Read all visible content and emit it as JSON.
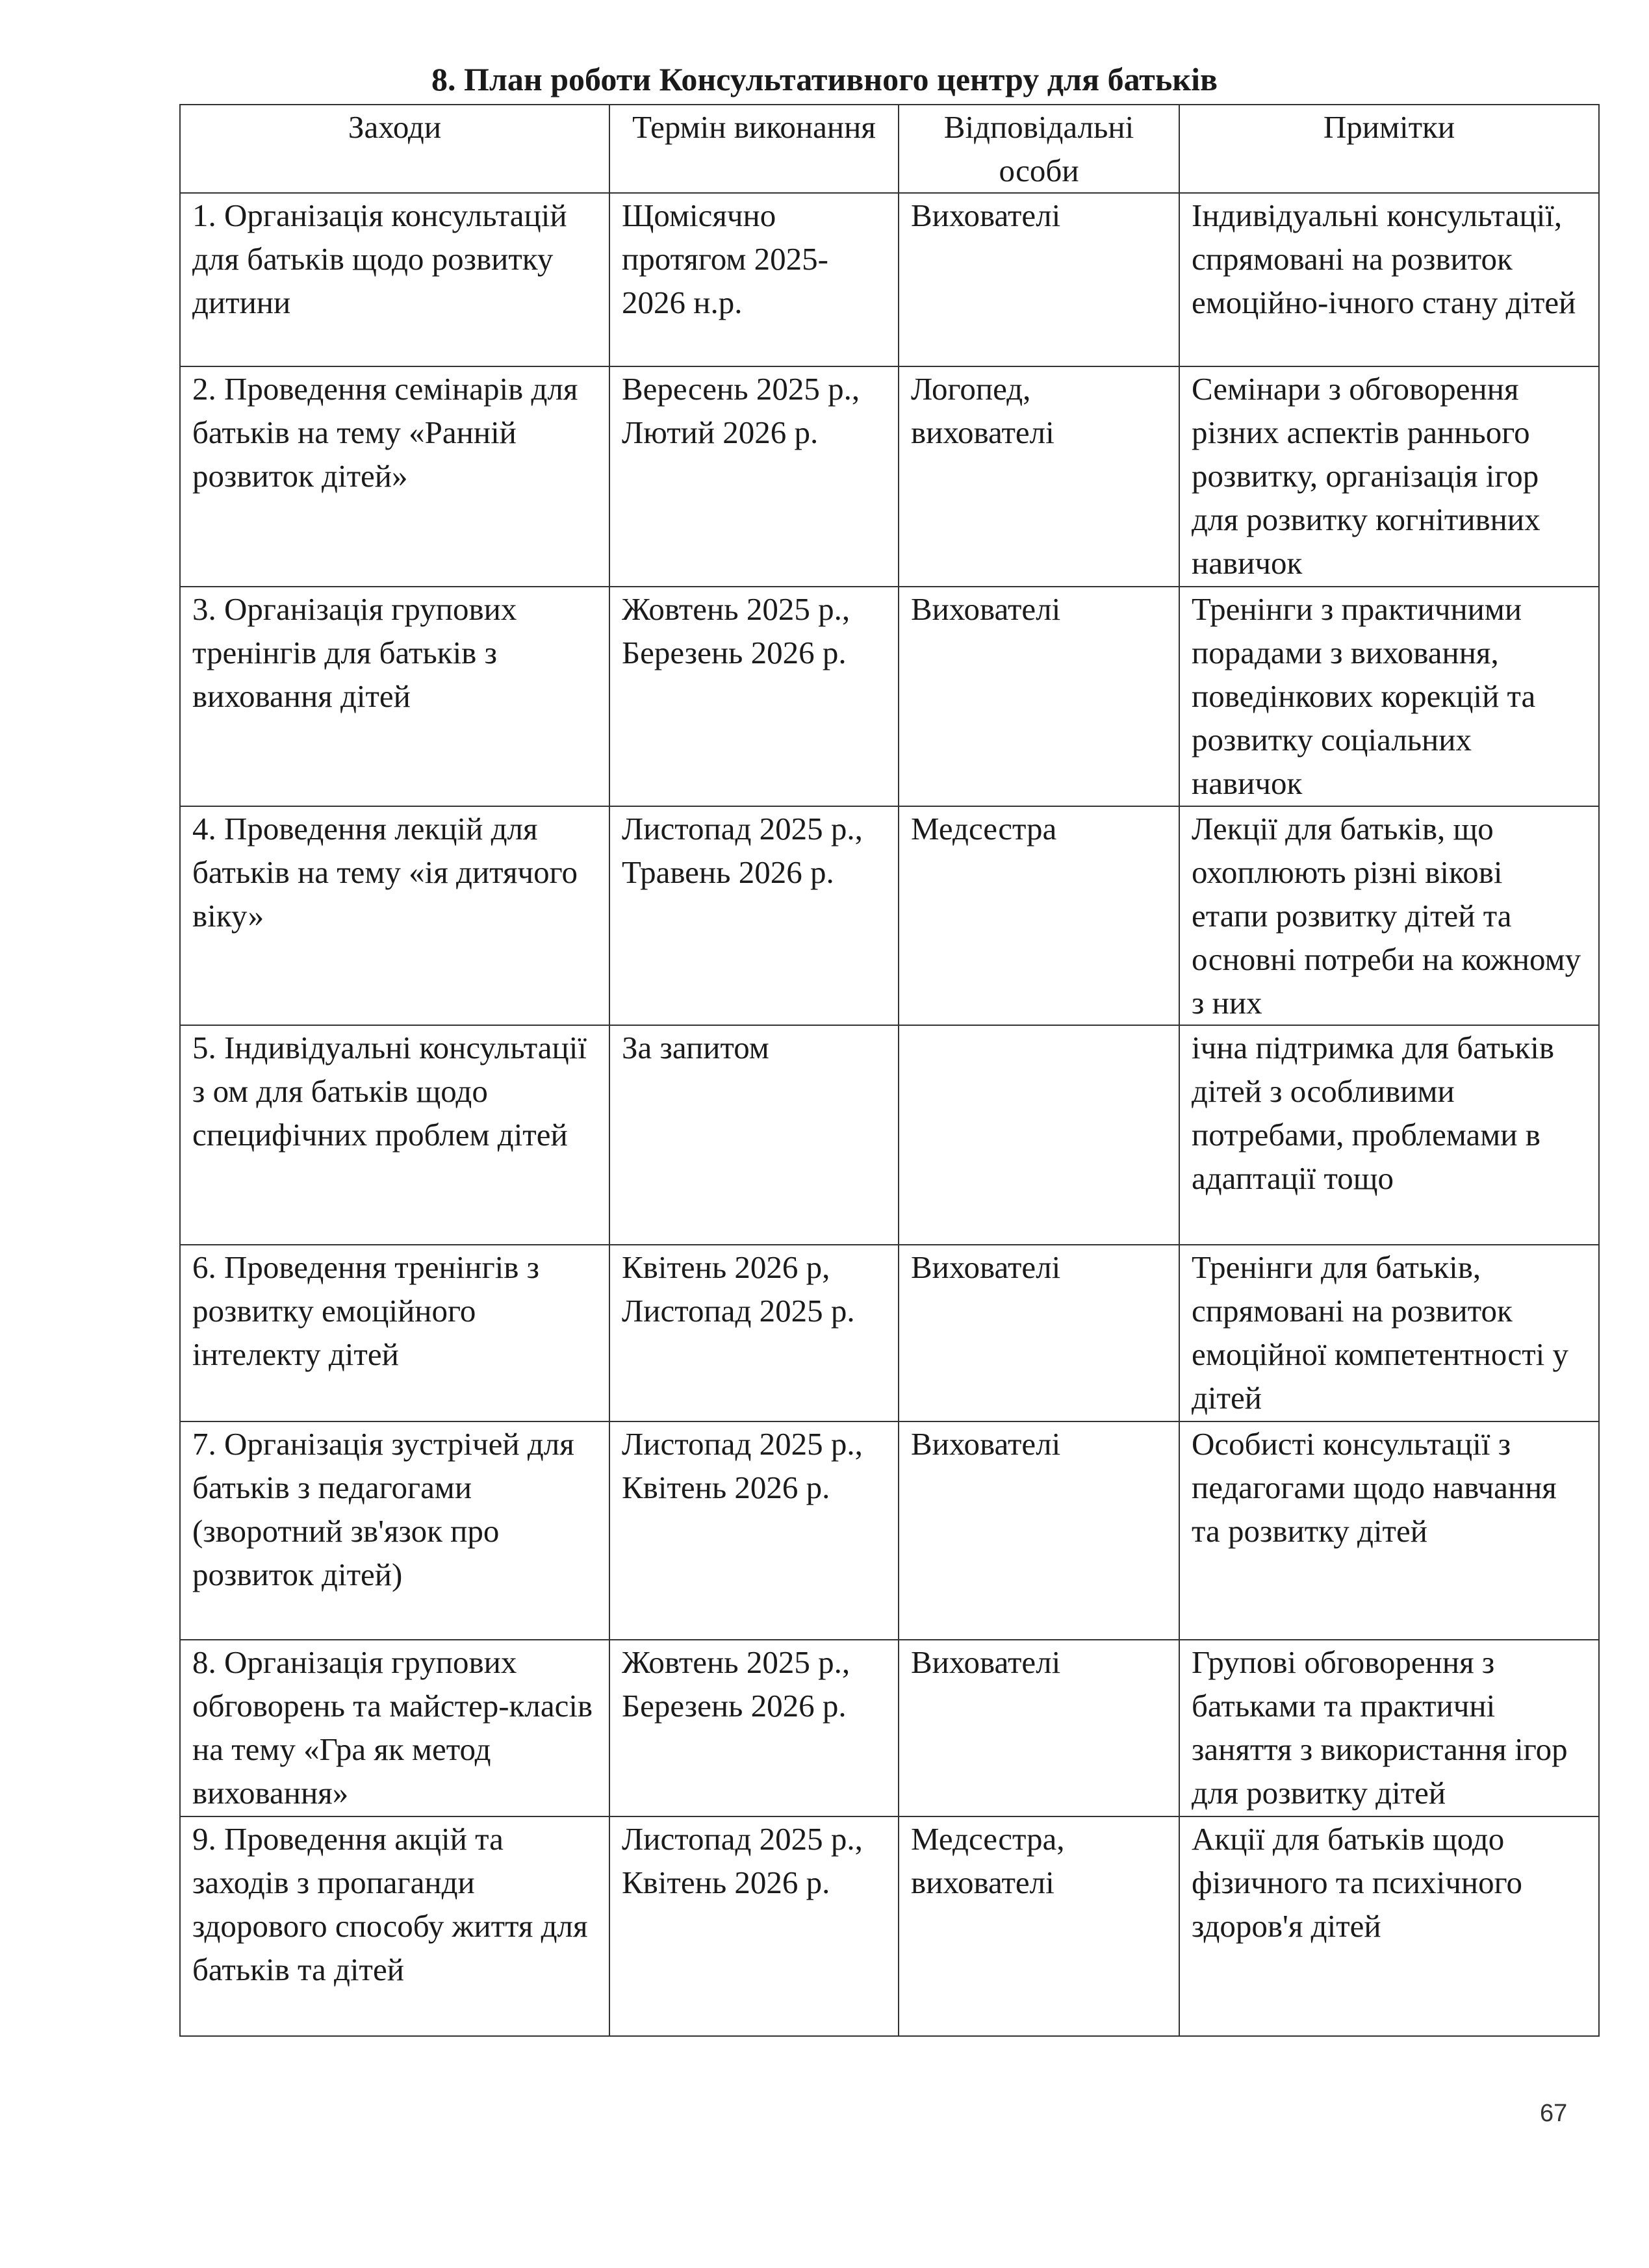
{
  "title": "8.  План роботи Консультативного центру для батьків",
  "headers": [
    "Заходи",
    "Термін виконання",
    "Відповідальні особи",
    "Примітки"
  ],
  "rows": [
    [
      "1. Організація консультацій для батьків щодо розвитку дитини",
      "Щомісячно протягом 2025-2026 н.р.",
      "Вихователі",
      "Індивідуальні консультації, спрямовані на розвиток емоційно-ічного стану дітей"
    ],
    [
      "2. Проведення семінарів для батьків на тему «Ранній розвиток дітей»",
      "Вересень 2025 р., Лютий 2026 р.",
      "Логопед, вихователі",
      "Семінари з обговорення різних аспектів раннього розвитку, організація ігор для розвитку когнітивних навичок"
    ],
    [
      "3. Організація групових тренінгів для батьків з виховання дітей",
      "Жовтень 2025 р., Березень 2026 р.",
      "Вихователі",
      "Тренінги з практичними порадами з виховання, поведінкових корекцій та розвитку соціальних навичок"
    ],
    [
      "4. Проведення лекцій для батьків на тему «ія дитячого віку»",
      "Листопад 2025 р., Травень 2026 р.",
      "Медсестра",
      "Лекції для батьків, що охоплюють різні вікові етапи розвитку дітей та основні потреби на кожному з них"
    ],
    [
      "5. Індивідуальні консультації з ом для батьків щодо специфічних проблем дітей",
      "За запитом",
      "",
      "ічна підтримка для батьків дітей з особливими потребами, проблемами в адаптації тощо"
    ],
    [
      "6. Проведення тренінгів з розвитку емоційного інтелекту дітей",
      "Квітень 2026 р, Листопад 2025 р.",
      "Вихователі",
      "Тренінги для батьків, спрямовані на розвиток емоційної компетентності у дітей"
    ],
    [
      "7. Організація зустрічей для батьків з педагогами (зворотний зв'язок про розвиток дітей)",
      "Листопад 2025 р., Квітень 2026 р.",
      "Вихователі",
      "Особисті консультації з педагогами щодо навчання та розвитку дітей"
    ],
    [
      "8. Організація групових обговорень та майстер-класів на тему «Гра як метод виховання»",
      "Жовтень 2025 р., Березень 2026 р.",
      "Вихователі",
      "Групові обговорення з батьками та практичні заняття з використання ігор для розвитку дітей"
    ],
    [
      "9. Проведення акцій та заходів з пропаганди здорового способу життя для батьків та дітей",
      "Листопад 2025 р., Квітень 2026 р.",
      "Медсестра, вихователі",
      "Акції для батьків щодо фізичного та психічного здоров'я дітей"
    ]
  ],
  "page_number": "67"
}
